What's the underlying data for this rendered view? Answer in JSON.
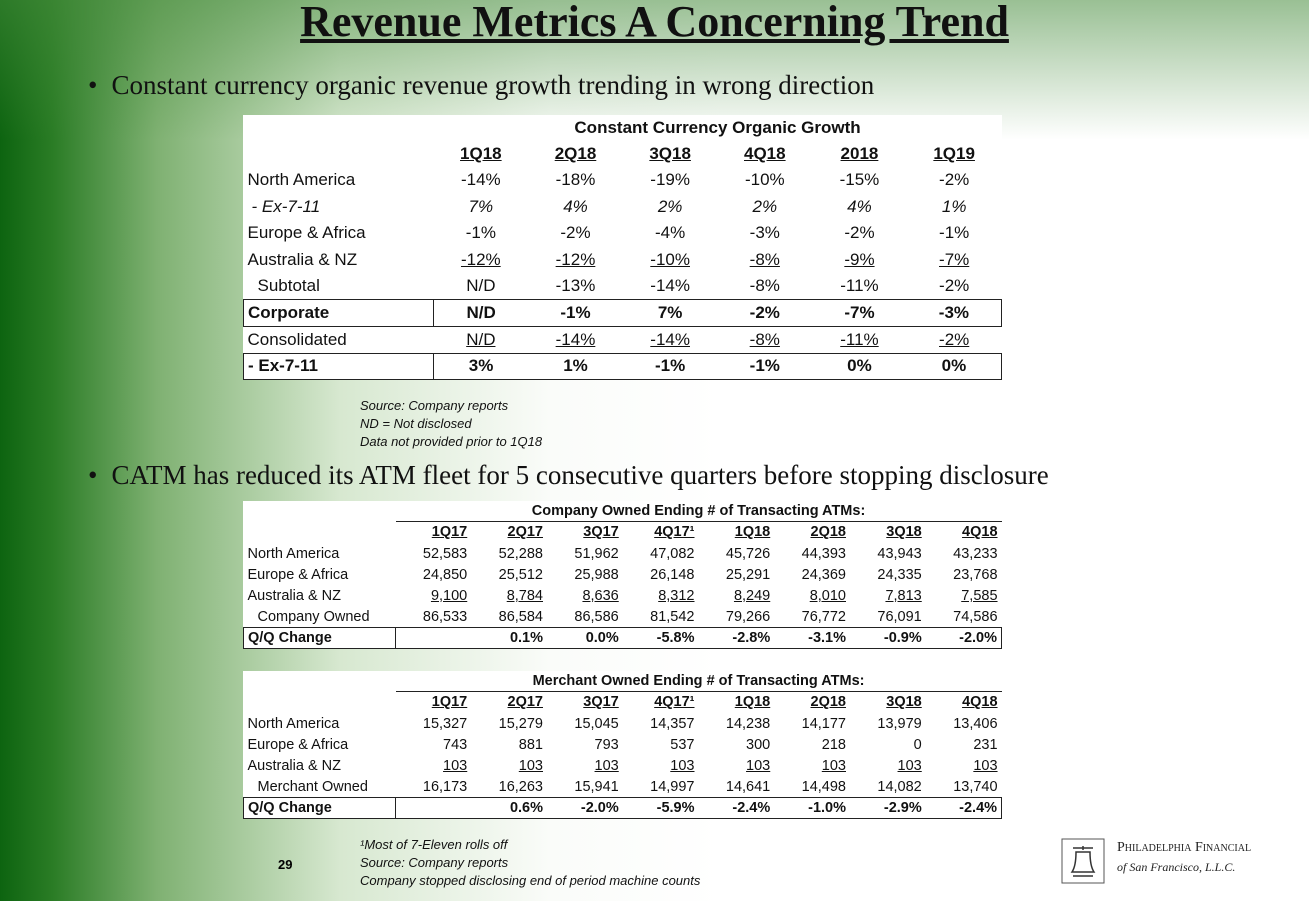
{
  "header": {
    "title": "Revenue Metrics A Concerning Trend"
  },
  "bullets": [
    "Constant currency organic revenue growth trending  in wrong direction",
    "CATM has reduced its ATM fleet for 5 consecutive quarters before stopping disclosure"
  ],
  "tables": [
    {
      "title": "Constant Currency Organic Growth",
      "headers": [
        "1Q18",
        "2Q18",
        "3Q18",
        "4Q18",
        "2018",
        "1Q19"
      ],
      "rows": [
        {
          "label": "North America",
          "values": [
            "-14%",
            "-18%",
            "-19%",
            "-10%",
            "-15%",
            "-2%"
          ]
        },
        {
          "label": "- Ex-7-11",
          "values": [
            "7%",
            "4%",
            "2%",
            "2%",
            "4%",
            "1%"
          ]
        },
        {
          "label": "Europe & Africa",
          "values": [
            "-1%",
            "-2%",
            "-4%",
            "-3%",
            "-2%",
            "-1%"
          ]
        },
        {
          "label": "Australia & NZ",
          "values": [
            "-12%",
            "-12%",
            "-10%",
            "-8%",
            "-9%",
            "-7%"
          ]
        },
        {
          "label": "Subtotal",
          "values": [
            "N/D",
            "-13%",
            "-14%",
            "-8%",
            "-11%",
            "-2%"
          ]
        },
        {
          "label": "Corporate",
          "values": [
            "N/D",
            "-1%",
            "7%",
            "-2%",
            "-7%",
            "-3%"
          ]
        },
        {
          "label": "Consolidated",
          "values": [
            "N/D",
            "-14%",
            "-14%",
            "-8%",
            "-11%",
            "-2%"
          ]
        },
        {
          "label": "- Ex-7-11",
          "values": [
            "3%",
            "1%",
            "-1%",
            "-1%",
            "0%",
            "0%"
          ]
        }
      ]
    },
    {
      "title": "Company Owned Ending # of Transacting ATMs:",
      "headers": [
        "1Q17",
        "2Q17",
        "3Q17",
        "4Q17¹",
        "1Q18",
        "2Q18",
        "3Q18",
        "4Q18"
      ],
      "rows": [
        {
          "label": "North America",
          "values": [
            "52,583",
            "52,288",
            "51,962",
            "47,082",
            "45,726",
            "44,393",
            "43,943",
            "43,233"
          ]
        },
        {
          "label": "Europe  & Africa",
          "values": [
            "24,850",
            "25,512",
            "25,988",
            "26,148",
            "25,291",
            "24,369",
            "24,335",
            "23,768"
          ]
        },
        {
          "label": "Australia & NZ",
          "values": [
            "9,100",
            "8,784",
            "8,636",
            "8,312",
            "8,249",
            "8,010",
            "7,813",
            "7,585"
          ]
        },
        {
          "label": "Company Owned",
          "values": [
            "86,533",
            "86,584",
            "86,586",
            "81,542",
            "79,266",
            "76,772",
            "76,091",
            "74,586"
          ]
        },
        {
          "label": "Q/Q Change",
          "values": [
            null,
            "0.1%",
            "0.0%",
            "-5.8%",
            "-2.8%",
            "-3.1%",
            "-0.9%",
            "-2.0%"
          ]
        }
      ]
    },
    {
      "title": "Merchant Owned Ending # of Transacting ATMs:",
      "headers": [
        "1Q17",
        "2Q17",
        "3Q17",
        "4Q17¹",
        "1Q18",
        "2Q18",
        "3Q18",
        "4Q18"
      ],
      "rows": [
        {
          "label": "North America",
          "values": [
            "15,327",
            "15,279",
            "15,045",
            "14,357",
            "14,238",
            "14,177",
            "13,979",
            "13,406"
          ]
        },
        {
          "label": "Europe & Africa",
          "values": [
            "743",
            "881",
            "793",
            "537",
            "300",
            "218",
            "0",
            "231"
          ]
        },
        {
          "label": "Australia & NZ",
          "values": [
            "103",
            "103",
            "103",
            "103",
            "103",
            "103",
            "103",
            "103"
          ]
        },
        {
          "label": "Merchant Owned",
          "values": [
            "16,173",
            "16,263",
            "15,941",
            "14,997",
            "14,641",
            "14,498",
            "14,082",
            "13,740"
          ]
        },
        {
          "label": "Q/Q Change",
          "values": [
            null,
            "0.6%",
            "-2.0%",
            "-5.9%",
            "-2.4%",
            "-1.0%",
            "-2.9%",
            "-2.4%"
          ]
        }
      ]
    }
  ],
  "notes": [
    "Source: Company reports",
    "ND = Not disclosed",
    "Data not provided prior to 1Q18"
  ],
  "footnotes": [
    "¹Most of 7-Eleven rolls off",
    "Source: Company reports",
    "Company stopped disclosing end of period machine counts"
  ],
  "footer": {
    "page": "29",
    "logo": [
      "Philadelphia Financial",
      "of San Francisco, L.L.C."
    ]
  }
}
